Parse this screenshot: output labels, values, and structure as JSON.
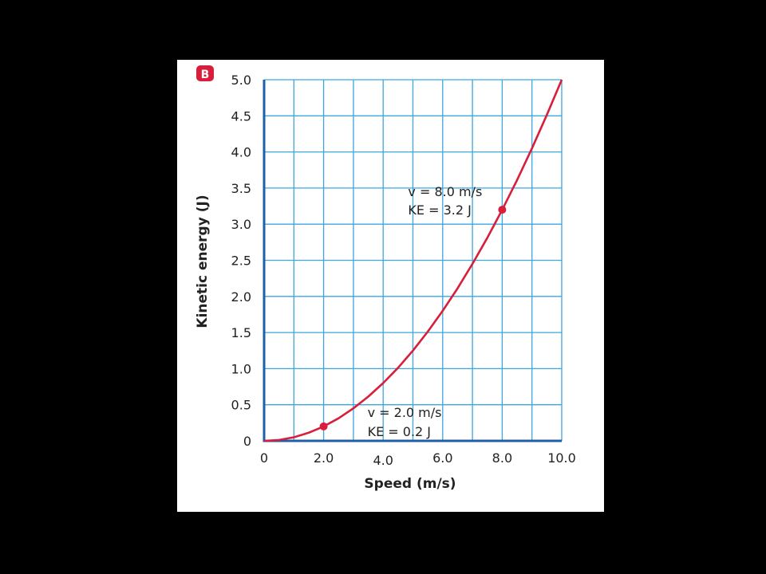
{
  "chart_data": {
    "type": "line",
    "panel_label": "B",
    "xlabel": "Speed (m/s)",
    "ylabel": "Kinetic energy (J)",
    "xlim": [
      0,
      10
    ],
    "ylim": [
      0,
      5
    ],
    "grid": true,
    "x_ticks": [
      {
        "value": 0,
        "label": "0"
      },
      {
        "value": 2,
        "label": "2.0"
      },
      {
        "value": 4,
        "label": "4.0"
      },
      {
        "value": 6,
        "label": "6.0"
      },
      {
        "value": 8,
        "label": "8.0"
      },
      {
        "value": 10,
        "label": "10.0"
      }
    ],
    "y_ticks": [
      {
        "value": 0,
        "label": "0"
      },
      {
        "value": 0.5,
        "label": "0.5"
      },
      {
        "value": 1.0,
        "label": "1.0"
      },
      {
        "value": 1.5,
        "label": "1.5"
      },
      {
        "value": 2.0,
        "label": "2.0"
      },
      {
        "value": 2.5,
        "label": "2.5"
      },
      {
        "value": 3.0,
        "label": "3.0"
      },
      {
        "value": 3.5,
        "label": "3.5"
      },
      {
        "value": 4.0,
        "label": "4.0"
      },
      {
        "value": 4.5,
        "label": "4.5"
      },
      {
        "value": 5.0,
        "label": "5.0"
      }
    ],
    "series": [
      {
        "x": [
          0,
          0.5,
          1,
          1.5,
          2,
          2.5,
          3,
          3.5,
          4,
          4.5,
          5,
          5.5,
          6,
          6.5,
          7,
          7.5,
          8,
          8.5,
          9,
          9.5,
          10
        ],
        "values": [
          0,
          0.0125,
          0.05,
          0.1125,
          0.2,
          0.3125,
          0.45,
          0.6125,
          0.8,
          1.0125,
          1.25,
          1.5125,
          1.8,
          2.1125,
          2.45,
          2.8125,
          3.2,
          3.6125,
          4.05,
          4.5125,
          5.0
        ]
      }
    ],
    "points": [
      {
        "x": 2,
        "y": 0.2,
        "line1": "v = 2.0 m/s",
        "line2": "KE = 0.2 J"
      },
      {
        "x": 8,
        "y": 3.2,
        "line1": "v = 8.0 m/s",
        "line2": "KE = 3.2 J"
      }
    ],
    "colors": {
      "curve": "#d81e3a",
      "grid": "#3aa7dd",
      "axis": "#1f5fa8",
      "badge": "#d81e3a"
    }
  }
}
